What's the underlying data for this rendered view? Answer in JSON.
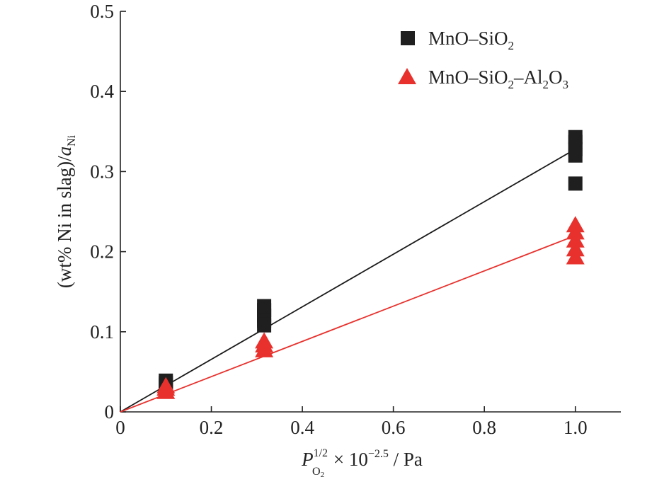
{
  "chart_data": {
    "type": "scatter",
    "xlabel": {
      "base": "P",
      "superscript": "1/2",
      "subscript": "O",
      "subscript2": "2",
      "rest": " × 10",
      "exponent": "−2.5",
      "unit": " / Pa"
    },
    "ylabel": {
      "main": "(wt% Ni in slag)/",
      "italic": "a",
      "subscript": "Ni"
    },
    "xlim": [
      0,
      1.1
    ],
    "ylim": [
      0,
      0.5
    ],
    "xticks": [
      0,
      0.2,
      0.4,
      0.6,
      0.8,
      1.0
    ],
    "xtick_labels": [
      "0",
      "0.2",
      "0.4",
      "0.6",
      "0.8",
      "1.0"
    ],
    "yticks": [
      0,
      0.1,
      0.2,
      0.3,
      0.4,
      0.5
    ],
    "ytick_labels": [
      "0",
      "0.1",
      "0.2",
      "0.3",
      "0.4",
      "0.5"
    ],
    "grid": false,
    "legend_position": "top-right",
    "series": [
      {
        "name": "MnO–SiO2",
        "legend": {
          "main": "MnO–SiO",
          "sub1": "2"
        },
        "marker": "square",
        "color": "#1f1f1f",
        "points": [
          [
            0.1,
            0.033
          ],
          [
            0.1,
            0.036
          ],
          [
            0.1,
            0.039
          ],
          [
            0.316,
            0.108
          ],
          [
            0.316,
            0.114
          ],
          [
            0.316,
            0.12
          ],
          [
            0.316,
            0.127
          ],
          [
            0.316,
            0.132
          ],
          [
            1.0,
            0.285
          ],
          [
            1.0,
            0.32
          ],
          [
            1.0,
            0.328
          ],
          [
            1.0,
            0.337
          ],
          [
            1.0,
            0.343
          ]
        ],
        "fit": {
          "slope": 0.328,
          "intercept": 0.0
        }
      },
      {
        "name": "MnO–SiO2–Al2O3",
        "legend": {
          "main": "MnO–SiO",
          "sub1": "2",
          "mid": "–Al",
          "sub2": "2",
          "end": "O",
          "sub3": "3"
        },
        "marker": "triangle",
        "color": "#e8312d",
        "points": [
          [
            0.1,
            0.025
          ],
          [
            0.1,
            0.029
          ],
          [
            0.1,
            0.032
          ],
          [
            0.316,
            0.077
          ],
          [
            0.316,
            0.083
          ],
          [
            0.316,
            0.088
          ],
          [
            1.0,
            0.193
          ],
          [
            1.0,
            0.203
          ],
          [
            1.0,
            0.214
          ],
          [
            1.0,
            0.224
          ],
          [
            1.0,
            0.233
          ]
        ],
        "fit": {
          "slope": 0.22,
          "intercept": 0.0
        }
      }
    ]
  }
}
